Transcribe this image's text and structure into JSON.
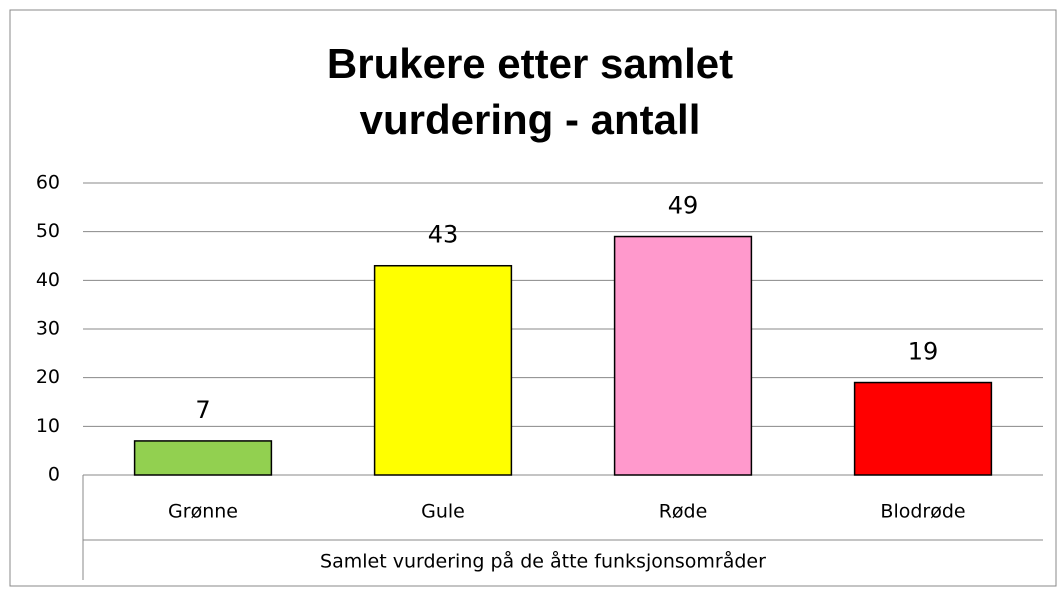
{
  "chart_data": {
    "type": "bar",
    "title": "Brukere etter samlet vurdering - antall",
    "categories": [
      "Grønne",
      "Gule",
      "Røde",
      "Blodrøde"
    ],
    "values": [
      7,
      43,
      49,
      19
    ],
    "colors": [
      "#92d050",
      "#ffff00",
      "#ff99cc",
      "#ff0000"
    ],
    "xlabel": "Samlet vurdering på de åtte funksjonsområder",
    "ylim": [
      0,
      60
    ],
    "yticks": [
      0,
      10,
      20,
      30,
      40,
      50,
      60
    ],
    "grid": true
  }
}
